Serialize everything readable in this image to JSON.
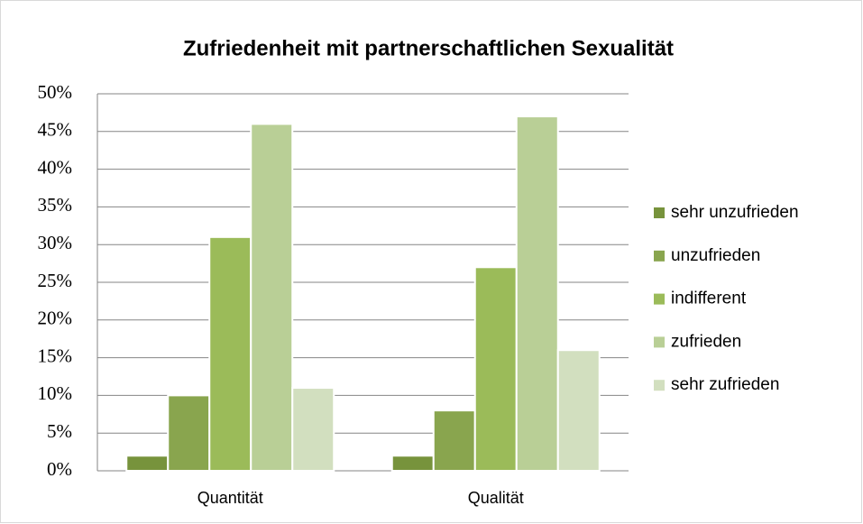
{
  "chart_data": {
    "type": "bar",
    "title": "Zufriedenheit mit partnerschaftlichen Sexualität",
    "categories": [
      "Quantität",
      "Qualität"
    ],
    "series": [
      {
        "name": "sehr unzufrieden",
        "color": "#77933c",
        "values": [
          2,
          2
        ]
      },
      {
        "name": "unzufrieden",
        "color": "#89a54e",
        "values": [
          10,
          8
        ]
      },
      {
        "name": "indifferent",
        "color": "#9bbb59",
        "values": [
          31,
          27
        ]
      },
      {
        "name": "zufrieden",
        "color": "#b9cf96",
        "values": [
          46,
          47
        ]
      },
      {
        "name": "sehr zufrieden",
        "color": "#d2dfbf",
        "values": [
          11,
          16
        ]
      }
    ],
    "ylim": [
      0,
      50
    ],
    "yticks": [
      {
        "value": 0,
        "label": "0%"
      },
      {
        "value": 5,
        "label": "5%"
      },
      {
        "value": 10,
        "label": "10%"
      },
      {
        "value": 15,
        "label": "15%"
      },
      {
        "value": 20,
        "label": "20%"
      },
      {
        "value": 25,
        "label": "25%"
      },
      {
        "value": 30,
        "label": "30%"
      },
      {
        "value": 35,
        "label": "35%"
      },
      {
        "value": 40,
        "label": "40%"
      },
      {
        "value": 45,
        "label": "45%"
      },
      {
        "value": 50,
        "label": "50%"
      }
    ],
    "grid": true,
    "legend": "right"
  }
}
